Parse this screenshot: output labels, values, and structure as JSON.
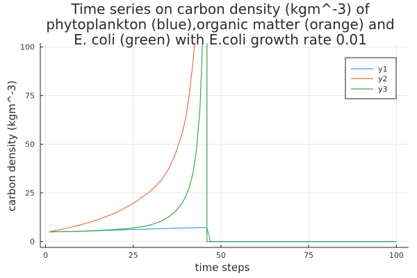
{
  "chart_data": {
    "type": "line",
    "title_lines": [
      "Time series on carbon density (kgm^-3) of",
      "phytoplankton (blue),organic matter (orange) and",
      "E. coli (green) with E.coli growth rate 0.01"
    ],
    "xlabel": "time steps",
    "ylabel": "carbon density (kgm^-3)",
    "xlim": [
      0,
      100
    ],
    "ylim": [
      0,
      100
    ],
    "x_ticks": [
      0,
      25,
      50,
      75,
      100
    ],
    "y_ticks": [
      0,
      25,
      50,
      75,
      100
    ],
    "grid": true,
    "legend_position": "top-right",
    "series": [
      {
        "name": "y1",
        "color": "#3a9fd9",
        "points": [
          [
            1,
            5.0
          ],
          [
            5,
            5.1
          ],
          [
            10,
            5.3
          ],
          [
            15,
            5.6
          ],
          [
            20,
            5.9
          ],
          [
            25,
            6.2
          ],
          [
            30,
            6.5
          ],
          [
            35,
            6.8
          ],
          [
            40,
            7.0
          ],
          [
            45,
            7.2
          ],
          [
            46,
            7.2
          ],
          [
            47,
            0
          ],
          [
            60,
            0
          ],
          [
            80,
            0
          ],
          [
            100,
            0
          ]
        ]
      },
      {
        "name": "y2",
        "color": "#e26f46",
        "points": [
          [
            1,
            5.0
          ],
          [
            5,
            6.5
          ],
          [
            10,
            8.6
          ],
          [
            15,
            11.3
          ],
          [
            20,
            14.8
          ],
          [
            25,
            19.5
          ],
          [
            30,
            26.0
          ],
          [
            33,
            31.5
          ],
          [
            35,
            37.0
          ],
          [
            37,
            45.0
          ],
          [
            39,
            56.0
          ],
          [
            40,
            64.0
          ],
          [
            41,
            76.0
          ],
          [
            42,
            92.0
          ],
          [
            42.5,
            102.0
          ]
        ]
      },
      {
        "name": "y3",
        "color": "#3da44d",
        "points": [
          [
            1,
            5.0
          ],
          [
            5,
            5.1
          ],
          [
            10,
            5.3
          ],
          [
            15,
            5.7
          ],
          [
            20,
            6.2
          ],
          [
            25,
            7.0
          ],
          [
            28,
            7.8
          ],
          [
            30,
            8.6
          ],
          [
            33,
            10.5
          ],
          [
            35,
            12.5
          ],
          [
            37,
            15.5
          ],
          [
            39,
            20.0
          ],
          [
            40,
            23.5
          ],
          [
            41,
            28.0
          ],
          [
            42,
            35.0
          ],
          [
            43,
            47.0
          ],
          [
            44,
            68.0
          ],
          [
            44.5,
            90.0
          ],
          [
            44.7,
            102.0
          ]
        ]
      },
      {
        "name": "",
        "color": "#3da44d",
        "points": [
          [
            46,
            102.0
          ],
          [
            46,
            0
          ],
          [
            47,
            0
          ],
          [
            100,
            0
          ]
        ]
      }
    ]
  }
}
